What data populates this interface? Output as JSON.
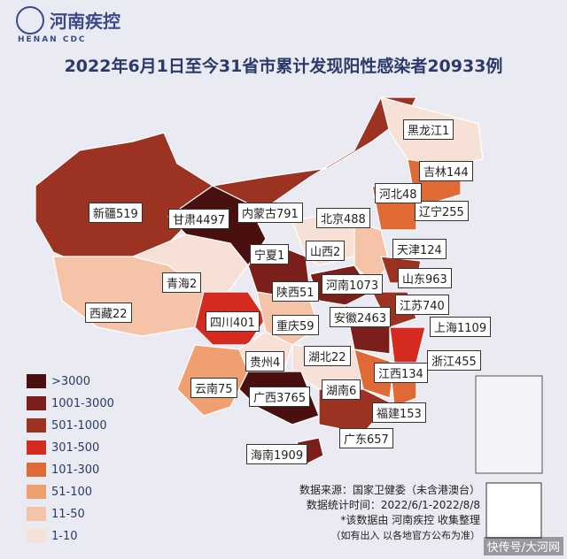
{
  "header": {
    "logo_cn": "河南疾控",
    "logo_en": "HENAN CDC",
    "title": "2022年6月1日至今31省市累计发现阳性感染者20933例"
  },
  "provinces": [
    {
      "name": "黑龙江",
      "count": 1
    },
    {
      "name": "吉林",
      "count": 144
    },
    {
      "name": "辽宁",
      "count": 255
    },
    {
      "name": "河北",
      "count": 48
    },
    {
      "name": "北京",
      "count": 488
    },
    {
      "name": "天津",
      "count": 124
    },
    {
      "name": "内蒙古",
      "count": 791
    },
    {
      "name": "甘肃",
      "count": 4497
    },
    {
      "name": "新疆",
      "count": 519
    },
    {
      "name": "宁夏",
      "count": 1
    },
    {
      "name": "山西",
      "count": 2
    },
    {
      "name": "山东",
      "count": 963
    },
    {
      "name": "青海",
      "count": 2
    },
    {
      "name": "陕西",
      "count": 51
    },
    {
      "name": "河南",
      "count": 1073
    },
    {
      "name": "江苏",
      "count": 740
    },
    {
      "name": "西藏",
      "count": 22
    },
    {
      "name": "四川",
      "count": 401
    },
    {
      "name": "重庆",
      "count": 59
    },
    {
      "name": "安徽",
      "count": 2463
    },
    {
      "name": "上海",
      "count": 1109
    },
    {
      "name": "贵州",
      "count": 4
    },
    {
      "name": "湖北",
      "count": 22
    },
    {
      "name": "浙江",
      "count": 455
    },
    {
      "name": "江西",
      "count": 134
    },
    {
      "name": "云南",
      "count": 75
    },
    {
      "name": "广西",
      "count": 3765
    },
    {
      "name": "湖南",
      "count": 6
    },
    {
      "name": "福建",
      "count": 153
    },
    {
      "name": "广东",
      "count": 657
    },
    {
      "name": "海南",
      "count": 1909
    }
  ],
  "legend": [
    {
      "label": ">3000",
      "color": "#4a1010"
    },
    {
      "label": "1001-3000",
      "color": "#7a1f1a"
    },
    {
      "label": "501-1000",
      "color": "#9b3222"
    },
    {
      "label": "301-500",
      "color": "#d42a20"
    },
    {
      "label": "101-300",
      "color": "#e06a35"
    },
    {
      "label": "51-100",
      "color": "#f0a070"
    },
    {
      "label": "11-50",
      "color": "#f5c3a8"
    },
    {
      "label": "1-10",
      "color": "#f7e0d6"
    }
  ],
  "footer": {
    "source": "数据来源：国家卫健委（未含港澳台）",
    "period": "数据统计时间：2022/6/1-2022/8/8",
    "note": "*该数据由 河南疾控 收集整理",
    "disclaimer": "（如有出入 以各地官方公布为准）"
  },
  "watermark": "快传号/大河网"
}
